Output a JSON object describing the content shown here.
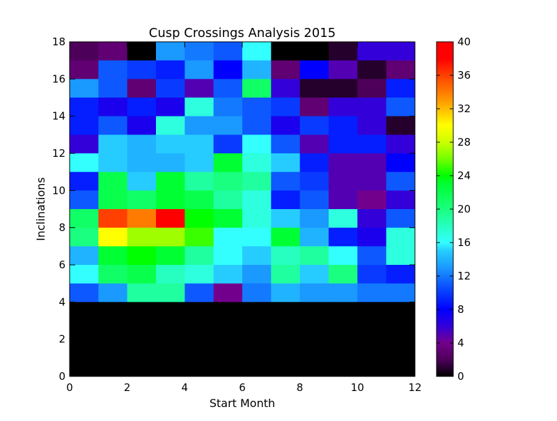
{
  "chart_data": {
    "type": "heatmap",
    "title": "Cusp Crossings Analysis 2015",
    "xlabel": "Start Month",
    "ylabel": "Inclinations",
    "xlim": [
      0,
      12
    ],
    "ylim": [
      0,
      18
    ],
    "x_ticks": [
      0,
      2,
      4,
      6,
      8,
      10,
      12
    ],
    "y_ticks": [
      0,
      2,
      4,
      6,
      8,
      10,
      12,
      14,
      16,
      18
    ],
    "x_edges": [
      0,
      1,
      2,
      3,
      4,
      5,
      6,
      7,
      8,
      9,
      10,
      11,
      12
    ],
    "y_edges": [
      0,
      1,
      2,
      3,
      4,
      5,
      6,
      7,
      8,
      9,
      10,
      11,
      12,
      13,
      14,
      15,
      16,
      17,
      18
    ],
    "colormap": "nipy_spectral",
    "colorbar": {
      "min": 0,
      "max": 40,
      "ticks": [
        0,
        4,
        8,
        12,
        16,
        20,
        24,
        28,
        32,
        36,
        40
      ]
    },
    "grid": false,
    "row_order": "top row = inclination 17-18, bottom row = 0-1",
    "values": [
      [
        2,
        3,
        0,
        13,
        12,
        11,
        16,
        0,
        0,
        1,
        6,
        6
      ],
      [
        3,
        11,
        10,
        9,
        13,
        8,
        14,
        3,
        8,
        5,
        1,
        3
      ],
      [
        13,
        11,
        3,
        10,
        5,
        11,
        21,
        6,
        1,
        1,
        2,
        9
      ],
      [
        9,
        7,
        9,
        7,
        17,
        12,
        11,
        10,
        3,
        6,
        6,
        11
      ],
      [
        9,
        11,
        7,
        17,
        13,
        13,
        11,
        7,
        10,
        9,
        6,
        1
      ],
      [
        6,
        15,
        14,
        15,
        15,
        10,
        16,
        11,
        5,
        9,
        9,
        6
      ],
      [
        16,
        15,
        14,
        14,
        15,
        23,
        17,
        15,
        9,
        5,
        5,
        8
      ],
      [
        9,
        22,
        15,
        23,
        19,
        20,
        19,
        11,
        10,
        5,
        5,
        11
      ],
      [
        11,
        22,
        21,
        23,
        22,
        19,
        17,
        9,
        11,
        5,
        4,
        6
      ],
      [
        21,
        36,
        34,
        38,
        24,
        23,
        17,
        15,
        13,
        17,
        6,
        11
      ],
      [
        20,
        30,
        27,
        27,
        25,
        16,
        16,
        23,
        14,
        9,
        7,
        17
      ],
      [
        14,
        23,
        24,
        23,
        19,
        16,
        15,
        18,
        19,
        16,
        11,
        17
      ],
      [
        16,
        21,
        22,
        18,
        17,
        15,
        13,
        19,
        15,
        20,
        10,
        9
      ],
      [
        11,
        13,
        19,
        19,
        11,
        4,
        12,
        14,
        13,
        13,
        12,
        12
      ],
      [
        0,
        0,
        0,
        0,
        0,
        0,
        0,
        0,
        0,
        0,
        0,
        0
      ],
      [
        0,
        0,
        0,
        0,
        0,
        0,
        0,
        0,
        0,
        0,
        0,
        0
      ],
      [
        0,
        0,
        0,
        0,
        0,
        0,
        0,
        0,
        0,
        0,
        0,
        0
      ],
      [
        0,
        0,
        0,
        0,
        0,
        0,
        0,
        0,
        0,
        0,
        0,
        0
      ]
    ]
  }
}
